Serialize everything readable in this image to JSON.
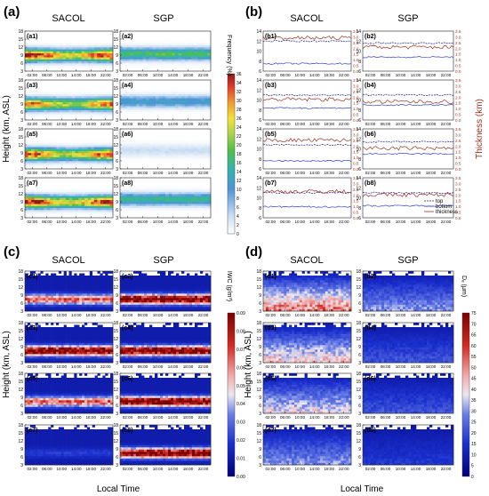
{
  "panel_letters": [
    "(a)",
    "(b)",
    "(c)",
    "(d)"
  ],
  "column_titles": {
    "left": "SACOL",
    "right": "SGP"
  },
  "x_axis": {
    "label": "Local Time",
    "ticks": [
      "02:00",
      "06:00",
      "10:00",
      "14:00",
      "18:00",
      "22:00"
    ]
  },
  "y_axis": {
    "label": "Height (km, ASL)"
  },
  "chart_data": [
    {
      "id": "a",
      "type": "heatmap",
      "subplots": [
        "(a1)",
        "(a2)",
        "(a3)",
        "(a4)",
        "(a5)",
        "(a6)",
        "(a7)",
        "(a8)"
      ],
      "yticks": [
        "3",
        "6",
        "9",
        "12",
        "15",
        "18"
      ],
      "colorbar": {
        "label": "Frequency (%)",
        "ticks": [
          "0",
          "2",
          "4",
          "6",
          "8",
          "10",
          "12",
          "14",
          "16",
          "18",
          "20",
          "22",
          "24",
          "26",
          "28",
          "30",
          "32",
          "34",
          "36"
        ]
      },
      "layer_center_km": {
        "SACOL": [
          9,
          9,
          8.5,
          9
        ],
        "SGP": [
          9.5,
          10,
          10,
          10
        ]
      },
      "peak_frequency_pct": {
        "SACOL": [
          34,
          30,
          32,
          34
        ],
        "SGP": [
          18,
          12,
          4,
          16
        ]
      }
    },
    {
      "id": "b",
      "type": "line",
      "subplots": [
        "(b1)",
        "(b2)",
        "(b3)",
        "(b4)",
        "(b5)",
        "(b6)",
        "(b7)",
        "(b8)"
      ],
      "yticks_height": [
        "6",
        "8",
        "10",
        "12",
        "14"
      ],
      "yticks_thickness": [
        "0.0",
        "0.5",
        "1.0",
        "1.5",
        "2.0",
        "2.5",
        "3.0",
        "3.5"
      ],
      "ylabel_right": "Thickness (km)",
      "legend": [
        "top",
        "bottom",
        "thickness"
      ],
      "series": [
        {
          "name": "top",
          "color": "#1a1a8c",
          "SACOL": [
            12,
            11,
            10.8,
            11
          ],
          "SGP": [
            11.6,
            11,
            11.4,
            11
          ]
        },
        {
          "name": "bottom",
          "color": "#3344cc",
          "SACOL": [
            7.5,
            8.4,
            7.6,
            8.2
          ],
          "SGP": [
            8.8,
            9,
            9,
            8.4
          ]
        },
        {
          "name": "thickness",
          "color": "#a03020",
          "SACOL": [
            2.9,
            1.8,
            2.5,
            2.3
          ],
          "SGP": [
            2.1,
            1.6,
            1.8,
            2.0
          ]
        }
      ]
    },
    {
      "id": "c",
      "type": "heatmap",
      "subplots": [
        "(c1)",
        "(c2)",
        "(c3)",
        "(c4)",
        "(c5)",
        "(c6)",
        "(c7)",
        "(c8)"
      ],
      "yticks": [
        "3",
        "6",
        "9",
        "12",
        "15",
        "18"
      ],
      "colorbar": {
        "label": "IWC (g/m³)",
        "ticks": [
          "0.00",
          "0.01",
          "0.02",
          "0.03",
          "0.04",
          "0.05",
          "0.06",
          "0.07",
          "0.08",
          "0.09"
        ]
      },
      "peak_value": {
        "SACOL": [
          0.06,
          0.09,
          0.06,
          0.01
        ],
        "SGP": [
          0.09,
          0.09,
          0.09,
          0.09
        ]
      }
    },
    {
      "id": "d",
      "type": "heatmap",
      "subplots": [
        "(d1)",
        "(d2)",
        "(d3)",
        "(d4)",
        "(d5)",
        "(d6)",
        "(d7)",
        "(d8)"
      ],
      "yticks": [
        "3",
        "6",
        "9",
        "12",
        "15",
        "18"
      ],
      "colorbar": {
        "label": "Dₑ (μm)",
        "ticks": [
          "0",
          "5",
          "10",
          "15",
          "20",
          "25",
          "30",
          "35",
          "40",
          "45",
          "50",
          "55",
          "60",
          "65",
          "70",
          "75"
        ]
      },
      "peak_value": {
        "SACOL": [
          50,
          40,
          35,
          25
        ],
        "SGP": [
          25,
          15,
          15,
          10
        ]
      }
    }
  ]
}
